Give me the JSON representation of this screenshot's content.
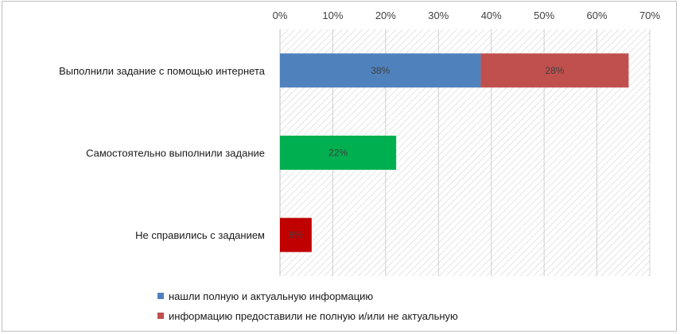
{
  "chart_data": {
    "type": "bar",
    "orientation": "horizontal",
    "stacked": true,
    "xlim": [
      0,
      70
    ],
    "x_ticks": [
      "0%",
      "10%",
      "20%",
      "30%",
      "40%",
      "50%",
      "60%",
      "70%"
    ],
    "x_axis_position": "top",
    "grid": true,
    "legend_position": "bottom",
    "categories": [
      "Выполнили задание с помощью интернета",
      "Самостоятельно выполнили задание",
      "Не справились с заданием"
    ],
    "series": [
      {
        "name": "нашли полную и актуальную информацию",
        "color": "#4f81bd",
        "values": [
          38,
          null,
          null
        ],
        "labels": [
          "38%",
          "",
          ""
        ]
      },
      {
        "name": "информацию предоставили не полную и/или не актуальную",
        "color": "#c0504d",
        "values": [
          28,
          null,
          null
        ],
        "labels": [
          "28%",
          "",
          ""
        ]
      },
      {
        "name": "",
        "color": "#00b050",
        "values": [
          null,
          22,
          null
        ],
        "labels": [
          "",
          "22%",
          ""
        ]
      },
      {
        "name": "",
        "color": "#c00000",
        "values": [
          null,
          null,
          6
        ],
        "labels": [
          "",
          "",
          "6%"
        ]
      }
    ],
    "legend": [
      {
        "label": "нашли полную и актуальную информацию",
        "color": "#4f81bd"
      },
      {
        "label": "информацию предоставили не полную и/или не актуальную",
        "color": "#c0504d"
      }
    ]
  }
}
